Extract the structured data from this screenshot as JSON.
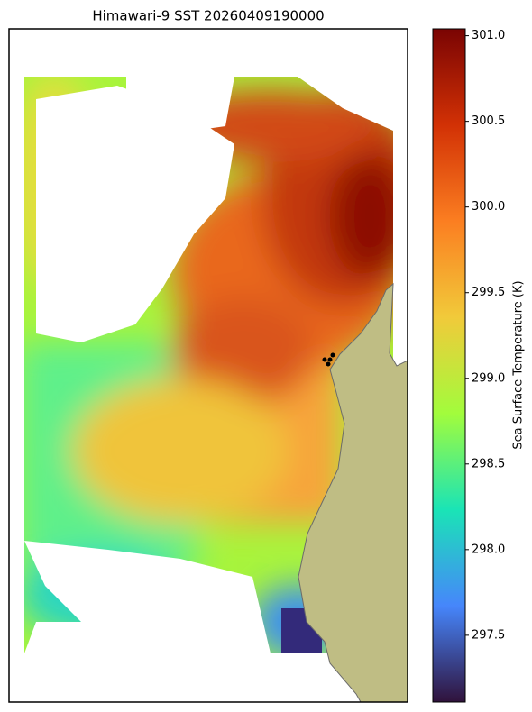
{
  "chart_data": {
    "type": "map",
    "title": "Himawari-9 SST 20260409190000",
    "colorbar": {
      "label": "Sea Surface Temperature (K)",
      "lim": [
        297.11,
        301.04
      ],
      "colors": [
        "#30123b",
        "#4686fb",
        "#1ae4b6",
        "#a2fc3c",
        "#f1ca3a",
        "#fb7e21",
        "#d23105",
        "#7a0403"
      ],
      "ticks": [
        {
          "value": 297.5,
          "label": "297.5"
        },
        {
          "value": 298,
          "label": "298.0"
        },
        {
          "value": 298.5,
          "label": "298.5"
        },
        {
          "value": 299,
          "label": "299.0"
        },
        {
          "value": 299.5,
          "label": "299.5"
        },
        {
          "value": 300,
          "label": "300.0"
        },
        {
          "value": 300.5,
          "label": "300.5"
        },
        {
          "value": 301,
          "label": "301.0"
        }
      ]
    }
  }
}
